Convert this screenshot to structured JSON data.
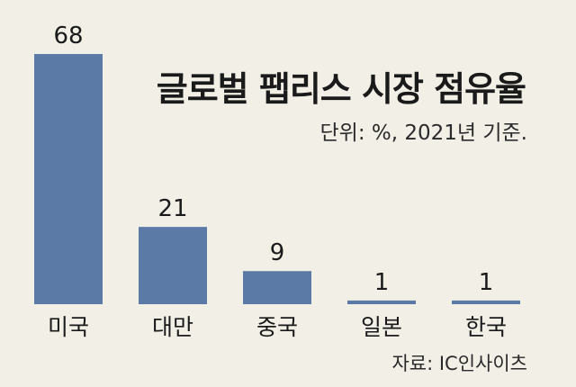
{
  "chart_data": {
    "type": "bar",
    "title": "글로벌 팹리스 시장 점유율",
    "subtitle": "단위: %, 2021년 기준.",
    "source": "자료: IC인사이츠",
    "categories": [
      "미국",
      "대만",
      "중국",
      "일본",
      "한국"
    ],
    "values": [
      68,
      21,
      9,
      1,
      1
    ],
    "ylim": [
      0,
      68
    ],
    "xlabel": "",
    "ylabel": "",
    "grid": false,
    "bar_color": "#5b7aa6"
  }
}
